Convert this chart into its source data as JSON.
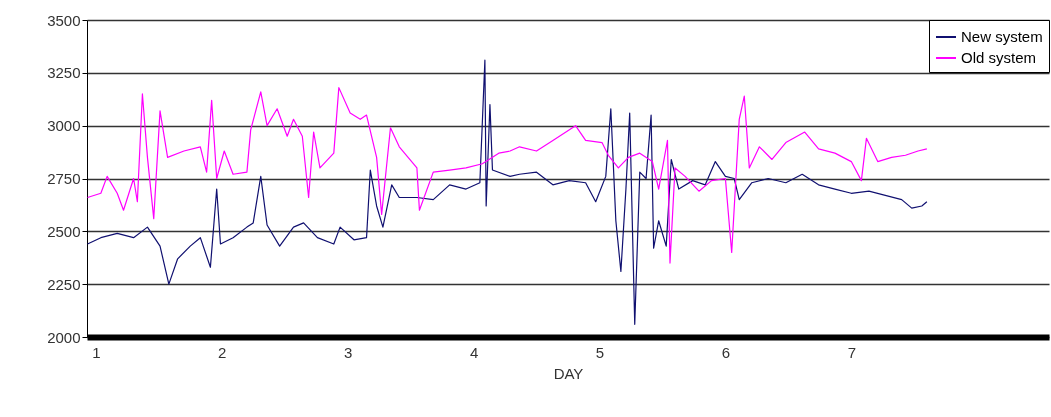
{
  "chart_data": {
    "type": "line",
    "xlabel": "DAY",
    "xlim": [
      0.93,
      8.57
    ],
    "xticks": [
      1,
      2,
      3,
      4,
      5,
      6,
      7
    ],
    "ylim": [
      2000,
      3500
    ],
    "yticks": [
      2000,
      2250,
      2500,
      2750,
      3000,
      3250,
      3500
    ],
    "grid": "y",
    "legend": "top right",
    "marker": "none",
    "line_style": "solid",
    "series": [
      {
        "name": "New system",
        "color": "#101070",
        "x": [
          0.934,
          1.04,
          1.17,
          1.3,
          1.41,
          1.51,
          1.58,
          1.65,
          1.75,
          1.83,
          1.91,
          1.96,
          1.99,
          2.09,
          2.2,
          2.25,
          2.31,
          2.36,
          2.46,
          2.57,
          2.65,
          2.76,
          2.89,
          2.94,
          3.05,
          3.15,
          3.18,
          3.23,
          3.28,
          3.35,
          3.41,
          3.55,
          3.68,
          3.81,
          3.94,
          4.05,
          4.09,
          4.1,
          4.13,
          4.15,
          4.29,
          4.365,
          4.5,
          4.63,
          4.76,
          4.89,
          4.97,
          5.05,
          5.09,
          5.13,
          5.17,
          5.21,
          5.24,
          5.28,
          5.32,
          5.37,
          5.41,
          5.43,
          5.47,
          5.53,
          5.57,
          5.63,
          5.74,
          5.84,
          5.92,
          6.0,
          6.07,
          6.11,
          6.21,
          6.34,
          6.48,
          6.61,
          6.74,
          6.87,
          7.0,
          7.14,
          7.27,
          7.4,
          7.48,
          7.56,
          7.6
        ],
        "values": [
          2440,
          2470,
          2490,
          2470,
          2520,
          2430,
          2250,
          2370,
          2430,
          2470,
          2330,
          2700,
          2440,
          2470,
          2520,
          2540,
          2760,
          2530,
          2430,
          2520,
          2540,
          2470,
          2440,
          2520,
          2460,
          2470,
          2790,
          2620,
          2520,
          2720,
          2660,
          2660,
          2650,
          2720,
          2700,
          2730,
          3310,
          2620,
          3100,
          2790,
          2760,
          2770,
          2780,
          2720,
          2740,
          2730,
          2640,
          2760,
          3080,
          2550,
          2310,
          2700,
          3060,
          2060,
          2780,
          2750,
          3050,
          2420,
          2550,
          2430,
          2840,
          2700,
          2740,
          2720,
          2830,
          2760,
          2750,
          2650,
          2730,
          2750,
          2730,
          2770,
          2720,
          2700,
          2680,
          2690,
          2670,
          2650,
          2610,
          2620,
          2640
        ]
      },
      {
        "name": "Old system",
        "color": "#ff00ff",
        "x": [
          0.934,
          1.04,
          1.09,
          1.17,
          1.22,
          1.3,
          1.33,
          1.37,
          1.41,
          1.46,
          1.51,
          1.57,
          1.7,
          1.83,
          1.88,
          1.92,
          1.96,
          2.02,
          2.09,
          2.2,
          2.23,
          2.31,
          2.36,
          2.44,
          2.52,
          2.57,
          2.64,
          2.69,
          2.73,
          2.78,
          2.89,
          2.93,
          3.02,
          3.1,
          3.15,
          3.23,
          3.27,
          3.34,
          3.41,
          3.55,
          3.57,
          3.68,
          3.81,
          3.94,
          4.07,
          4.2,
          4.29,
          4.365,
          4.5,
          4.63,
          4.81,
          4.89,
          5.02,
          5.07,
          5.15,
          5.23,
          5.32,
          5.42,
          5.47,
          5.54,
          5.56,
          5.6,
          5.68,
          5.79,
          5.89,
          6.0,
          6.05,
          6.11,
          6.15,
          6.19,
          6.27,
          6.37,
          6.48,
          6.63,
          6.74,
          6.87,
          7.0,
          7.08,
          7.12,
          7.21,
          7.32,
          7.43,
          7.53,
          7.6
        ],
        "values": [
          2660,
          2680,
          2760,
          2680,
          2600,
          2750,
          2640,
          3150,
          2850,
          2560,
          3070,
          2850,
          2880,
          2900,
          2780,
          3120,
          2750,
          2880,
          2770,
          2780,
          2980,
          3160,
          3000,
          3080,
          2950,
          3030,
          2950,
          2660,
          2970,
          2800,
          2870,
          3180,
          3060,
          3030,
          3050,
          2850,
          2580,
          2990,
          2900,
          2800,
          2600,
          2780,
          2790,
          2800,
          2820,
          2870,
          2880,
          2900,
          2880,
          2930,
          3000,
          2930,
          2920,
          2860,
          2800,
          2850,
          2870,
          2830,
          2700,
          2930,
          2350,
          2800,
          2760,
          2690,
          2740,
          2750,
          2400,
          3030,
          3140,
          2800,
          2900,
          2840,
          2920,
          2970,
          2890,
          2870,
          2830,
          2740,
          2940,
          2830,
          2850,
          2860,
          2880,
          2890
        ]
      }
    ]
  }
}
